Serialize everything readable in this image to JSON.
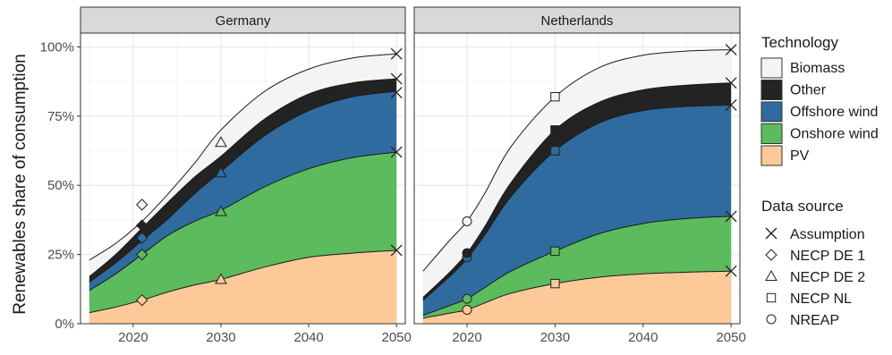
{
  "chart_data": {
    "type": "area",
    "ylabel": "Renewables share of consumption",
    "xlabel": "",
    "x_ticks": [
      2020,
      2030,
      2040,
      2050
    ],
    "xlim": [
      2014,
      2051
    ],
    "y_ticks": [
      "0%",
      "25%",
      "50%",
      "75%",
      "100%"
    ],
    "ylim": [
      0,
      1.05
    ],
    "grid": true,
    "stacking": "cumulative",
    "colors": {
      "PV": "#fdc998",
      "Onshore wind": "#5cbb5c",
      "Offshore wind": "#2f6b9e",
      "Other": "#232323",
      "Biomass": "#f4f4f4"
    },
    "legend_technology": {
      "title": "Technology",
      "items": [
        "Biomass",
        "Other",
        "Offshore wind",
        "Onshore wind",
        "PV"
      ]
    },
    "legend_source": {
      "title": "Data source",
      "items": [
        {
          "label": "Assumption",
          "shape": "cross"
        },
        {
          "label": "NECP DE 1",
          "shape": "diamond"
        },
        {
          "label": "NECP DE 2",
          "shape": "triangle"
        },
        {
          "label": "NECP NL",
          "shape": "square"
        },
        {
          "label": "NREAP",
          "shape": "circle"
        }
      ]
    },
    "panels": [
      {
        "title": "Germany",
        "x": [
          2015,
          2018,
          2021,
          2024,
          2027,
          2030,
          2035,
          2040,
          2045,
          2050
        ],
        "series": [
          {
            "name": "PV",
            "values": [
              0.04,
              0.06,
              0.085,
              0.115,
              0.14,
              0.16,
              0.205,
              0.24,
              0.255,
              0.265
            ]
          },
          {
            "name": "Onshore wind",
            "values": [
              0.12,
              0.18,
              0.25,
              0.32,
              0.37,
              0.41,
              0.495,
              0.56,
              0.6,
              0.62
            ]
          },
          {
            "name": "Offshore wind",
            "values": [
              0.15,
              0.22,
              0.3,
              0.38,
              0.47,
              0.55,
              0.68,
              0.77,
              0.82,
              0.84
            ]
          },
          {
            "name": "Other",
            "values": [
              0.17,
              0.25,
              0.345,
              0.44,
              0.53,
              0.605,
              0.74,
              0.83,
              0.87,
              0.885
            ]
          },
          {
            "name": "Biomass",
            "values": [
              0.23,
              0.29,
              0.37,
              0.47,
              0.58,
              0.7,
              0.84,
              0.92,
              0.96,
              0.975
            ]
          }
        ],
        "markers": [
          {
            "x": 2021,
            "y": 0.085,
            "shape": "diamond",
            "fill": "#fdc998"
          },
          {
            "x": 2021,
            "y": 0.25,
            "shape": "diamond",
            "fill": "#5cbb5c"
          },
          {
            "x": 2021,
            "y": 0.31,
            "shape": "diamond",
            "fill": "#2f6b9e"
          },
          {
            "x": 2021,
            "y": 0.355,
            "shape": "diamond",
            "fill": "#232323"
          },
          {
            "x": 2021,
            "y": 0.43,
            "shape": "diamond",
            "fill": "#f4f4f4"
          },
          {
            "x": 2030,
            "y": 0.16,
            "shape": "triangle",
            "fill": "#fdc998"
          },
          {
            "x": 2030,
            "y": 0.405,
            "shape": "triangle",
            "fill": "#5cbb5c"
          },
          {
            "x": 2030,
            "y": 0.545,
            "shape": "triangle",
            "fill": "#2f6b9e"
          },
          {
            "x": 2030,
            "y": 0.585,
            "shape": "triangle",
            "fill": "#232323"
          },
          {
            "x": 2030,
            "y": 0.655,
            "shape": "triangle",
            "fill": "#f4f4f4"
          },
          {
            "x": 2050,
            "y": 0.265,
            "shape": "cross"
          },
          {
            "x": 2050,
            "y": 0.62,
            "shape": "cross"
          },
          {
            "x": 2050,
            "y": 0.835,
            "shape": "cross"
          },
          {
            "x": 2050,
            "y": 0.885,
            "shape": "cross"
          },
          {
            "x": 2050,
            "y": 0.975,
            "shape": "cross"
          }
        ]
      },
      {
        "title": "Netherlands",
        "x": [
          2015,
          2018,
          2020,
          2022,
          2025,
          2030,
          2035,
          2040,
          2045,
          2050
        ],
        "series": [
          {
            "name": "PV",
            "values": [
              0.02,
              0.038,
              0.05,
              0.075,
              0.11,
              0.145,
              0.168,
              0.18,
              0.186,
              0.19
            ]
          },
          {
            "name": "Onshore wind",
            "values": [
              0.03,
              0.065,
              0.09,
              0.13,
              0.19,
              0.262,
              0.325,
              0.362,
              0.38,
              0.388
            ]
          },
          {
            "name": "Offshore wind",
            "values": [
              0.085,
              0.17,
              0.235,
              0.32,
              0.46,
              0.625,
              0.725,
              0.77,
              0.785,
              0.79
            ]
          },
          {
            "name": "Other",
            "values": [
              0.095,
              0.185,
              0.255,
              0.35,
              0.51,
              0.7,
              0.8,
              0.845,
              0.862,
              0.87
            ]
          },
          {
            "name": "Biomass",
            "values": [
              0.19,
              0.3,
              0.37,
              0.47,
              0.64,
              0.82,
              0.925,
              0.97,
              0.985,
              0.99
            ]
          }
        ],
        "markers": [
          {
            "x": 2020,
            "y": 0.05,
            "shape": "circle",
            "fill": "#fdc998"
          },
          {
            "x": 2020,
            "y": 0.09,
            "shape": "circle",
            "fill": "#5cbb5c"
          },
          {
            "x": 2020,
            "y": 0.24,
            "shape": "circle",
            "fill": "#2f6b9e"
          },
          {
            "x": 2020,
            "y": 0.255,
            "shape": "circle",
            "fill": "#232323"
          },
          {
            "x": 2020,
            "y": 0.37,
            "shape": "circle",
            "fill": "#f4f4f4"
          },
          {
            "x": 2030,
            "y": 0.145,
            "shape": "square",
            "fill": "#fdc998"
          },
          {
            "x": 2030,
            "y": 0.262,
            "shape": "square",
            "fill": "#5cbb5c"
          },
          {
            "x": 2030,
            "y": 0.625,
            "shape": "square",
            "fill": "#2f6b9e"
          },
          {
            "x": 2030,
            "y": 0.7,
            "shape": "square",
            "fill": "#232323"
          },
          {
            "x": 2030,
            "y": 0.82,
            "shape": "square",
            "fill": "#f4f4f4"
          },
          {
            "x": 2050,
            "y": 0.19,
            "shape": "cross"
          },
          {
            "x": 2050,
            "y": 0.388,
            "shape": "cross"
          },
          {
            "x": 2050,
            "y": 0.79,
            "shape": "cross"
          },
          {
            "x": 2050,
            "y": 0.87,
            "shape": "cross"
          },
          {
            "x": 2050,
            "y": 0.99,
            "shape": "cross"
          }
        ]
      }
    ]
  }
}
